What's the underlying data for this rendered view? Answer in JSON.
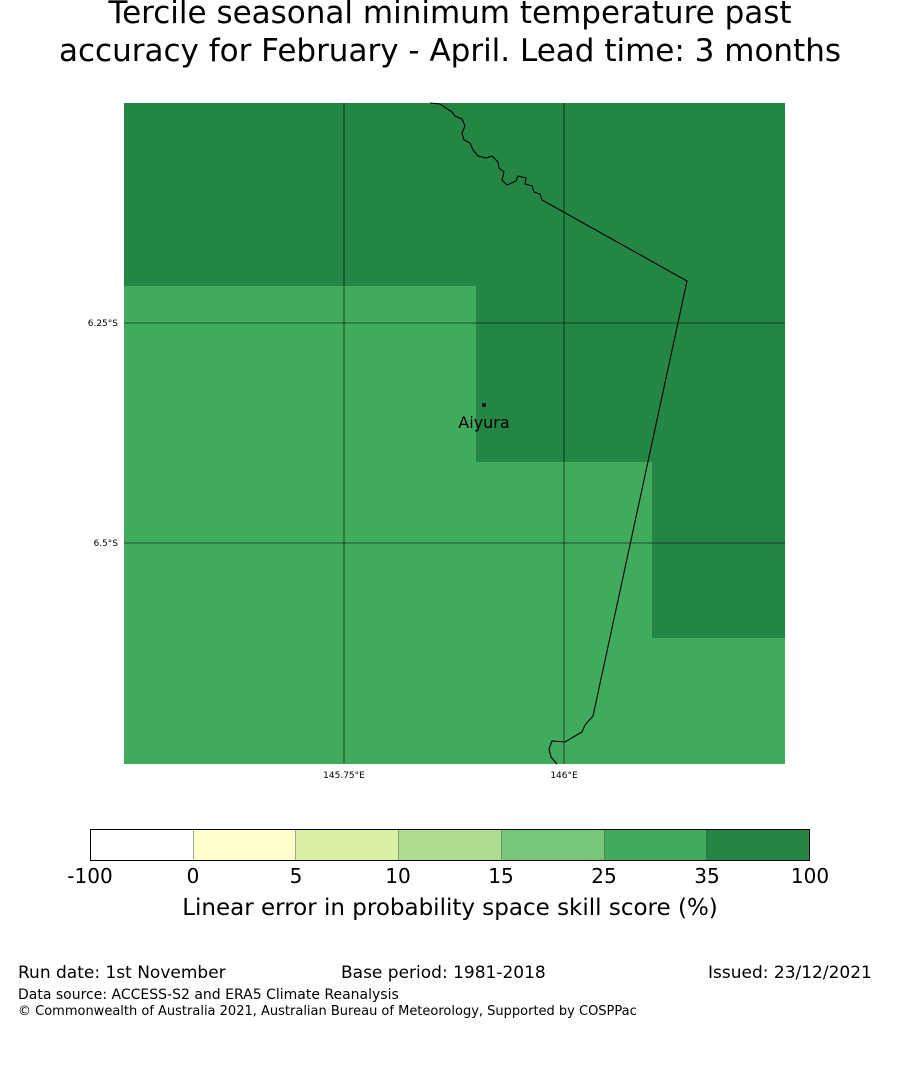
{
  "title_line1": "Tercile seasonal minimum temperature past",
  "title_line2": "accuracy for February - April. Lead time: 3 months",
  "map": {
    "lat_labels": [
      "6.25°S",
      "6.5°S"
    ],
    "lon_labels": [
      "145.75°E",
      "146°E"
    ],
    "place_name": "Aiyura",
    "colors": {
      "high": "#238645",
      "mid": "#41ab5d"
    }
  },
  "colorbar": {
    "ticks": [
      "-100",
      "0",
      "5",
      "10",
      "15",
      "25",
      "35",
      "100"
    ],
    "colors": [
      "#ffffff",
      "#ffffcc",
      "#d9f0a3",
      "#addd8e",
      "#78c679",
      "#41ab5d",
      "#238443"
    ],
    "label": "Linear error in probability space skill score (%)"
  },
  "footer": {
    "run_date": "Run date: 1st November",
    "base_period": "Base period: 1981-2018",
    "issued": "Issued: 23/12/2021",
    "data_source": "Data source: ACCESS-S2 and ERA5 Climate Reanalysis",
    "copyright": "© Commonwealth of Australia 2021, Australian Bureau of Meteorology, Supported by COSPPac"
  }
}
